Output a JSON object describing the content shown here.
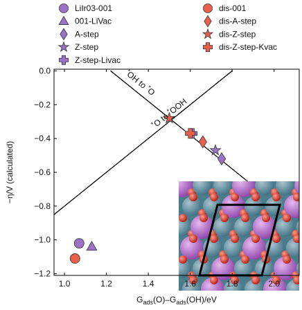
{
  "chart_data": {
    "type": "scatter",
    "x_label_parts": [
      "G",
      "ads",
      "(O)–G",
      "ads",
      "(OH)/eV"
    ],
    "y_label_parts": [
      "−η",
      "/V (calculated)"
    ],
    "xlim": [
      0.95,
      2.12
    ],
    "ylim": [
      -1.21,
      0.01
    ],
    "xticks": [
      {
        "value": 1.0,
        "label": "1.0"
      },
      1.2,
      1.4,
      1.6,
      1.8,
      {
        "value": 2.0,
        "label": "2.0"
      }
    ],
    "yticks": [
      {
        "value": 0,
        "label": "0.0"
      },
      {
        "value": -0.2,
        "label": "−0.2"
      },
      {
        "value": -0.4,
        "label": "−0.4"
      },
      {
        "value": -0.6,
        "label": "−0.6"
      },
      {
        "value": -0.8,
        "label": "−0.8"
      },
      {
        "value": -1.0,
        "label": "−1.0"
      },
      {
        "value": -1.2,
        "label": "−1.2"
      }
    ],
    "lines": [
      {
        "label_parts": [
          "*",
          "OH to ",
          "*",
          "O"
        ],
        "color": "#000000",
        "x": [
          1.22,
          2.12
        ],
        "y": [
          0.0,
          -0.9
        ]
      },
      {
        "label_parts": [
          "*",
          "O to ",
          "*",
          "OOH"
        ],
        "color": "#000000",
        "x": [
          0.95,
          1.8
        ],
        "y": [
          -0.85,
          0.0
        ]
      }
    ],
    "series": [
      {
        "name": "LiIr03-001",
        "marker": "circle",
        "color": "#9a72c6",
        "x": [
          1.07
        ],
        "y": [
          -1.02
        ]
      },
      {
        "name": "001-LiVac",
        "marker": "triangle",
        "color": "#9a72c6",
        "x": [
          1.13
        ],
        "y": [
          -1.04
        ]
      },
      {
        "name": "A-step",
        "marker": "diamond",
        "color": "#9a72c6",
        "x": [
          1.75
        ],
        "y": [
          -0.52
        ]
      },
      {
        "name": "Z-step",
        "marker": "star",
        "color": "#9a72c6",
        "x": [
          1.72
        ],
        "y": [
          -0.47
        ]
      },
      {
        "name": "Z-step-Livac",
        "marker": "plus",
        "color": "#9a72c6",
        "x": [
          1.61
        ],
        "y": [
          -0.37
        ]
      },
      {
        "name": "dis-001",
        "marker": "circle",
        "color": "#e8604c",
        "x": [
          1.05
        ],
        "y": [
          -1.11
        ]
      },
      {
        "name": "dis-A-step",
        "marker": "diamond",
        "color": "#e8604c",
        "x": [
          1.66
        ],
        "y": [
          -0.42
        ]
      },
      {
        "name": "dis-Z-step",
        "marker": "star",
        "color": "#e8604c",
        "x": [
          1.5
        ],
        "y": [
          -0.28
        ]
      },
      {
        "name": "dis-Z-step-Kvac",
        "marker": "plus",
        "color": "#e8604c",
        "x": [
          1.6
        ],
        "y": [
          -0.37
        ]
      }
    ]
  }
}
